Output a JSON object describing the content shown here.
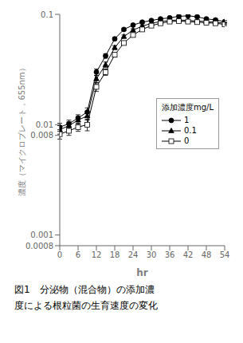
{
  "chart_data": {
    "type": "line",
    "xlabel": "hr",
    "ylabel": "濃度（マイクロプレート，655nm）",
    "legend_title": "添加濃度mg/L",
    "annotations": [
      "図1　分泌物（混合物）の添加濃",
      "度による根粒菌の生育速度の変化"
    ],
    "x": [
      0,
      3,
      6,
      9,
      12,
      15,
      18,
      21,
      24,
      27,
      30,
      33,
      36,
      39,
      42,
      45,
      48,
      51,
      54
    ],
    "xlim": [
      0,
      54
    ],
    "xticks": [
      0,
      6,
      12,
      18,
      24,
      30,
      36,
      42,
      48,
      54
    ],
    "ylim": [
      0.0008,
      0.1
    ],
    "yticks": [
      0.0008,
      0.001,
      0.008,
      0.01,
      0.1
    ],
    "log": "y",
    "legend": "right",
    "series": [
      {
        "name": "1",
        "color": "#000000",
        "marker": "circle",
        "values": [
          0.0095,
          0.0102,
          0.0115,
          0.013,
          0.03,
          0.042,
          0.06,
          0.073,
          0.08,
          0.085,
          0.088,
          0.091,
          0.093,
          0.096,
          0.097,
          0.095,
          0.091,
          0.089,
          0.086
        ],
        "yerr": [
          0.0008,
          0.0008,
          0.0008,
          0.0012,
          0.002,
          0.002,
          0.002,
          0.002,
          0.002,
          0.002,
          0.002,
          0.002,
          0.002,
          0.002,
          0.002,
          0.002,
          0.002,
          0.002,
          0.002
        ]
      },
      {
        "name": "0.1",
        "color": "#000000",
        "marker": "triangle",
        "values": [
          0.009,
          0.0098,
          0.011,
          0.012,
          0.026,
          0.035,
          0.05,
          0.063,
          0.072,
          0.078,
          0.083,
          0.086,
          0.088,
          0.089,
          0.088,
          0.087,
          0.086,
          0.085,
          0.083
        ],
        "yerr": [
          0.0008,
          0.0008,
          0.0008,
          0.001,
          0.002,
          0.002,
          0.002,
          0.002,
          0.002,
          0.002,
          0.002,
          0.002,
          0.002,
          0.002,
          0.002,
          0.002,
          0.002,
          0.002,
          0.002
        ]
      },
      {
        "name": "0",
        "color": "#000000",
        "marker": "square_open",
        "values": [
          0.0082,
          0.0088,
          0.0095,
          0.01,
          0.022,
          0.03,
          0.043,
          0.055,
          0.065,
          0.073,
          0.079,
          0.083,
          0.086,
          0.087,
          0.086,
          0.085,
          0.084,
          0.083,
          0.081
        ],
        "yerr": [
          0.0008,
          0.0008,
          0.0008,
          0.0012,
          0.002,
          0.002,
          0.002,
          0.002,
          0.002,
          0.002,
          0.002,
          0.002,
          0.002,
          0.002,
          0.002,
          0.002,
          0.002,
          0.002,
          0.002
        ]
      }
    ]
  }
}
